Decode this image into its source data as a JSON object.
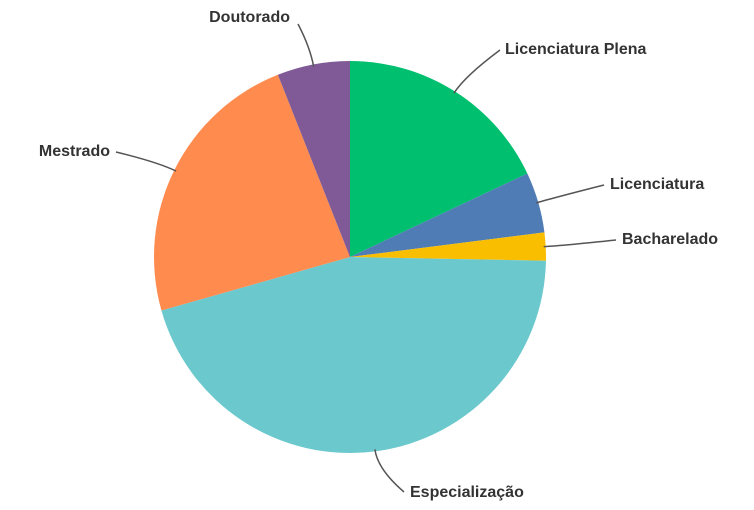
{
  "chart_data": {
    "type": "pie",
    "categories": [
      "Licenciatura Plena",
      "Licenciatura",
      "Bacharelado",
      "Especialização",
      "Mestrado",
      "Doutorado"
    ],
    "values": [
      18,
      5,
      2.3,
      45.3,
      23.4,
      6
    ],
    "colors": [
      "#00bf6f",
      "#507cb6",
      "#f9be00",
      "#6bc8cd",
      "#ff8b4f",
      "#7f5a96"
    ]
  }
}
